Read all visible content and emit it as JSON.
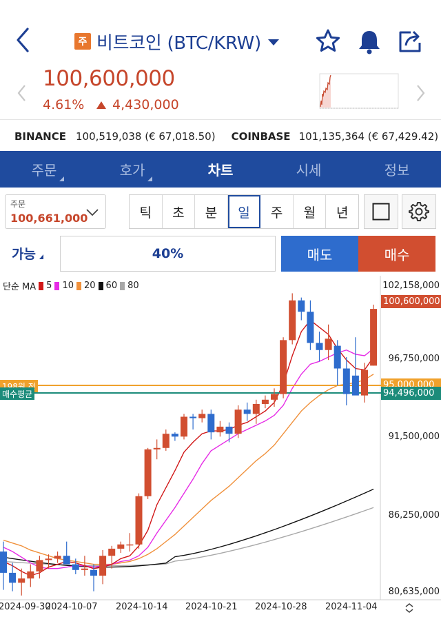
{
  "header": {
    "badge": "주",
    "title": "비트코인 (BTC/KRW)"
  },
  "quote": {
    "price": "100,600,000",
    "change_pct": "4.61%",
    "change_amt": "4,430,000"
  },
  "exchanges": [
    {
      "name": "BINANCE",
      "value": "100,519,038 (€ 67,018.50)"
    },
    {
      "name": "COINBASE",
      "value": "101,135,364 (€ 67,429.42)"
    }
  ],
  "tabs": [
    "주문",
    "호가",
    "차트",
    "시세",
    "정보"
  ],
  "active_tab": "차트",
  "order_select": {
    "label": "주문",
    "value": "100,661,000"
  },
  "periods": [
    "틱",
    "초",
    "분",
    "일",
    "주",
    "월",
    "년"
  ],
  "active_period": "일",
  "avail": {
    "label": "가능",
    "percent": "40%"
  },
  "buttons": {
    "sell": "매도",
    "buy": "매수"
  },
  "chart_labels": {
    "ma_prefix": "단순 MA",
    "avg_buy_tag": "매수평균",
    "order_tag": "198원 전",
    "price_tag_current": "100,600,000",
    "price_tag_avg": "94,496,000"
  },
  "colors": {
    "brand_blue": "#1f4b9e",
    "up_red": "#c6462b",
    "down_blue": "#2e6ccd",
    "accent_orange": "#e8772e",
    "avg_line_green": "#1b8b7a",
    "order_line_orange": "#f0a12c"
  },
  "chart_data": {
    "type": "candlestick",
    "ylim": [
      80635000,
      102158000
    ],
    "y_ticks": [
      "102,158,000",
      "96,750,000",
      "95,000,000",
      "91,500,000",
      "86,250,000",
      "80,635,000"
    ],
    "x_ticks": [
      "2024-09-30",
      "2024-10-07",
      "2024-10-14",
      "2024-10-21",
      "2024-10-28",
      "2024-11-04"
    ],
    "ma": [
      {
        "name": "5",
        "color": "#d11818"
      },
      {
        "name": "10",
        "color": "#e62be6"
      },
      {
        "name": "20",
        "color": "#f0913c"
      },
      {
        "name": "60",
        "color": "#111111"
      },
      {
        "name": "80",
        "color": "#a8a8a8"
      }
    ],
    "candles": [
      [
        83500000,
        84200000,
        80800000,
        82000000
      ],
      [
        82000000,
        82700000,
        80700000,
        81300000
      ],
      [
        81300000,
        82300000,
        80400000,
        81600000
      ],
      [
        81600000,
        82600000,
        81000000,
        82100000
      ],
      [
        82100000,
        83200000,
        81600000,
        82900000
      ],
      [
        82900000,
        83300000,
        82300000,
        83000000
      ],
      [
        83000000,
        83500000,
        82700000,
        83200000
      ],
      [
        83200000,
        84200000,
        82600000,
        82600000
      ],
      [
        82600000,
        83000000,
        81900000,
        82200000
      ],
      [
        82200000,
        83200000,
        81800000,
        82300000
      ],
      [
        82200000,
        82600000,
        80700000,
        81800000
      ],
      [
        81800000,
        83600000,
        81200000,
        83200000
      ],
      [
        83200000,
        83900000,
        82300000,
        83700000
      ],
      [
        83700000,
        84200000,
        83400000,
        84000000
      ],
      [
        84000000,
        84800000,
        83500000,
        84000000
      ],
      [
        84000000,
        87600000,
        83700000,
        87400000
      ],
      [
        87400000,
        90800000,
        87200000,
        90700000
      ],
      [
        90700000,
        91400000,
        90000000,
        90800000
      ],
      [
        90800000,
        92100000,
        90600000,
        91800000
      ],
      [
        91800000,
        91900000,
        91300000,
        91600000
      ],
      [
        91600000,
        93200000,
        91400000,
        93000000
      ],
      [
        93000000,
        93200000,
        92100000,
        92900000
      ],
      [
        92900000,
        93500000,
        92600000,
        93200000
      ],
      [
        93200000,
        93500000,
        91400000,
        91900000
      ],
      [
        91900000,
        92700000,
        91600000,
        92300000
      ],
      [
        92300000,
        92600000,
        91200000,
        91800000
      ],
      [
        91800000,
        93800000,
        91500000,
        93500000
      ],
      [
        93500000,
        94000000,
        92700000,
        93200000
      ],
      [
        93200000,
        94200000,
        92500000,
        93900000
      ],
      [
        93900000,
        94500000,
        93600000,
        94200000
      ],
      [
        94200000,
        95000000,
        93700000,
        94600000
      ],
      [
        94600000,
        98600000,
        94300000,
        98400000
      ],
      [
        98400000,
        101700000,
        98100000,
        101200000
      ],
      [
        101200000,
        101400000,
        99800000,
        100400000
      ],
      [
        100400000,
        101200000,
        97700000,
        98200000
      ],
      [
        98200000,
        99000000,
        96900000,
        97700000
      ],
      [
        97700000,
        99500000,
        97000000,
        98500000
      ],
      [
        98000000,
        98400000,
        95200000,
        96400000
      ],
      [
        96400000,
        97200000,
        93800000,
        94600000
      ],
      [
        95900000,
        98600000,
        94700000,
        94500000
      ],
      [
        94500000,
        96800000,
        94000000,
        96300000
      ],
      [
        96600000,
        100900000,
        96600000,
        100600000
      ]
    ],
    "ma5": [
      82800000,
      82500000,
      82100000,
      81800000,
      82000000,
      82400000,
      82600000,
      82800000,
      82700000,
      82500000,
      82300000,
      82400000,
      82600000,
      83000000,
      83200000,
      83900000,
      85000000,
      86800000,
      88000000,
      89200000,
      90500000,
      91200000,
      91800000,
      92000000,
      92000000,
      92100000,
      92400000,
      92600000,
      93000000,
      93400000,
      94000000,
      95300000,
      97300000,
      99000000,
      99800000,
      99300000,
      98800000,
      97800000,
      97000000,
      96400000,
      96300000,
      97200000
    ],
    "ma10": [
      83800000,
      83500000,
      83100000,
      82700000,
      82400000,
      82300000,
      82300000,
      82400000,
      82500000,
      82500000,
      82400000,
      82500000,
      82600000,
      82800000,
      82900000,
      83200000,
      83800000,
      84800000,
      85700000,
      86600000,
      87600000,
      88600000,
      89700000,
      90600000,
      91000000,
      91400000,
      91800000,
      92100000,
      92400000,
      92700000,
      93100000,
      93800000,
      95000000,
      96000000,
      96700000,
      96900000,
      97200000,
      97500000,
      97700000,
      97400000,
      97300000,
      97800000
    ],
    "ma20": [
      84300000,
      84100000,
      83900000,
      83600000,
      83400000,
      83200000,
      83000000,
      82900000,
      82800000,
      82700000,
      82600000,
      82600000,
      82600000,
      82700000,
      82800000,
      83000000,
      83300000,
      83700000,
      84200000,
      84700000,
      85300000,
      85900000,
      86500000,
      87100000,
      87600000,
      88100000,
      88700000,
      89300000,
      89900000,
      90400000,
      91000000,
      91800000,
      92600000,
      93400000,
      94000000,
      94500000,
      94900000,
      95200000,
      95300000,
      95400000,
      95600000,
      96000000
    ],
    "ma60_range": [
      83100000,
      87900000
    ],
    "ma80_range": [
      82800000,
      86600000
    ]
  }
}
